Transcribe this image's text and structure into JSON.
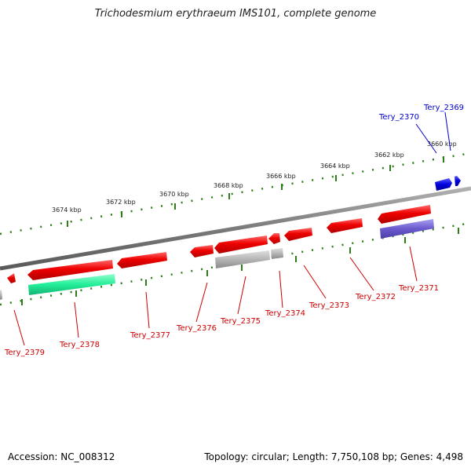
{
  "title": "Trichodesmium erythraeum IMS101, complete genome",
  "footer": {
    "accession": "Accession: NC_008312",
    "summary": "Topology: circular; Length: 7,750,108 bp; Genes: 4,498"
  },
  "colors": {
    "forward_gene": "#ee0000",
    "blue_gene": "#0000dd",
    "green_feature": "#22ee99",
    "gray_feature": "#aaaaaa",
    "purple_feature": "#6a5acd",
    "tick": "#2e7d1a",
    "backbone": "#808080",
    "label_red": "#cc0000",
    "label_blue": "#0000cc"
  },
  "tick_labels": [
    "3674 kbp",
    "3672 kbp",
    "3670 kbp",
    "3668 kbp",
    "3666 kbp",
    "3664 kbp",
    "3662 kbp",
    "3660 kbp"
  ],
  "gene_labels": [
    {
      "name": "Tery_2379",
      "color": "red"
    },
    {
      "name": "Tery_2378",
      "color": "red"
    },
    {
      "name": "Tery_2377",
      "color": "red"
    },
    {
      "name": "Tery_2376",
      "color": "red"
    },
    {
      "name": "Tery_2375",
      "color": "red"
    },
    {
      "name": "Tery_2374",
      "color": "red"
    },
    {
      "name": "Tery_2373",
      "color": "red"
    },
    {
      "name": "Tery_2372",
      "color": "red"
    },
    {
      "name": "Tery_2371",
      "color": "red"
    },
    {
      "name": "Tery_2370",
      "color": "blue"
    },
    {
      "name": "Tery_2369",
      "color": "blue"
    }
  ]
}
